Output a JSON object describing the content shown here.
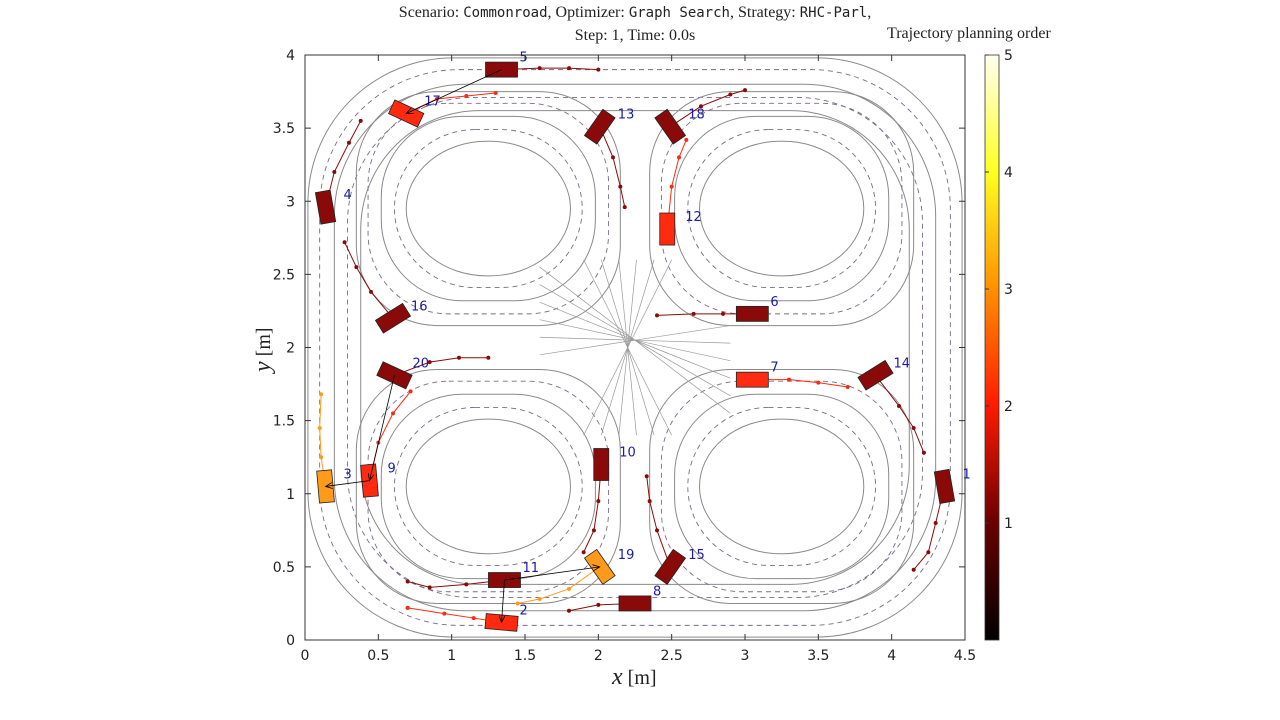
{
  "title": {
    "scenario_label": "Scenario: ",
    "scenario": "Commonroad",
    "optimizer_label": ", Optimizer: ",
    "optimizer": "Graph Search",
    "strategy_label": ", Strategy: ",
    "strategy": "RHC-Parl",
    "trail": ",",
    "line2": "Step: 1, Time: 0.0s"
  },
  "chart_data": {
    "type": "scatter",
    "xlabel_var": "x",
    "xlabel_unit": "[m]",
    "ylabel_var": "y",
    "ylabel_unit": "[m]",
    "xlim": [
      0,
      4.5
    ],
    "ylim": [
      0,
      4
    ],
    "xticks": [
      "0",
      "0.5",
      "1",
      "1.5",
      "2",
      "2.5",
      "3",
      "3.5",
      "4",
      "4.5"
    ],
    "yticks": [
      "0",
      "0.5",
      "1",
      "1.5",
      "2",
      "2.5",
      "3",
      "3.5",
      "4"
    ],
    "colorbar": {
      "title": "Trajectory planning order",
      "range": [
        0,
        5
      ],
      "ticks": [
        "1",
        "2",
        "3",
        "4",
        "5"
      ],
      "colormap": "hot"
    },
    "level_colors": {
      "1": "#8a0a0a",
      "2": "#ff2a10",
      "3": "#ff9a1a"
    },
    "vehicles": [
      {
        "id": "1",
        "x": 4.36,
        "y": 1.05,
        "angle": 100,
        "level": 1,
        "traj": [
          [
            4.3,
            0.8
          ],
          [
            4.25,
            0.6
          ],
          [
            4.15,
            0.48
          ]
        ]
      },
      {
        "id": "2",
        "x": 1.34,
        "y": 0.12,
        "angle": -5,
        "level": 2,
        "traj": [
          [
            1.15,
            0.15
          ],
          [
            0.95,
            0.18
          ],
          [
            0.7,
            0.22
          ],
          [
            0.7,
            0.22
          ]
        ]
      },
      {
        "id": "3",
        "x": 0.14,
        "y": 1.05,
        "angle": 95,
        "level": 3,
        "traj": [
          [
            0.11,
            1.25
          ],
          [
            0.1,
            1.45
          ],
          [
            0.11,
            1.68
          ]
        ]
      },
      {
        "id": "4",
        "x": 0.14,
        "y": 2.96,
        "angle": 100,
        "level": 1,
        "traj": [
          [
            0.2,
            3.2
          ],
          [
            0.3,
            3.4
          ],
          [
            0.38,
            3.55
          ]
        ]
      },
      {
        "id": "5",
        "x": 1.34,
        "y": 3.9,
        "angle": 0,
        "level": 1,
        "traj": [
          [
            1.6,
            3.91
          ],
          [
            1.8,
            3.91
          ],
          [
            2.0,
            3.9
          ]
        ]
      },
      {
        "id": "6",
        "x": 3.05,
        "y": 2.23,
        "angle": 0,
        "level": 1,
        "traj": [
          [
            2.85,
            2.23
          ],
          [
            2.65,
            2.23
          ],
          [
            2.4,
            2.22
          ]
        ]
      },
      {
        "id": "7",
        "x": 3.05,
        "y": 1.78,
        "angle": 0,
        "level": 2,
        "traj": [
          [
            3.3,
            1.78
          ],
          [
            3.5,
            1.76
          ],
          [
            3.7,
            1.73
          ]
        ]
      },
      {
        "id": "8",
        "x": 2.25,
        "y": 0.25,
        "angle": 0,
        "level": 1,
        "traj": [
          [
            2.0,
            0.24
          ],
          [
            1.8,
            0.2
          ]
        ]
      },
      {
        "id": "9",
        "x": 0.44,
        "y": 1.09,
        "angle": 95,
        "level": 2,
        "traj": [
          [
            0.5,
            1.35
          ],
          [
            0.6,
            1.55
          ],
          [
            0.72,
            1.7
          ]
        ]
      },
      {
        "id": "10",
        "x": 2.02,
        "y": 1.2,
        "angle": 90,
        "level": 1,
        "traj": [
          [
            2.0,
            0.95
          ],
          [
            1.97,
            0.75
          ],
          [
            1.9,
            0.6
          ]
        ]
      },
      {
        "id": "11",
        "x": 1.36,
        "y": 0.41,
        "angle": 0,
        "level": 1,
        "traj": [
          [
            1.1,
            0.38
          ],
          [
            0.85,
            0.36
          ],
          [
            0.7,
            0.4
          ]
        ]
      },
      {
        "id": "12",
        "x": 2.47,
        "y": 2.81,
        "angle": 90,
        "level": 2,
        "traj": [
          [
            2.5,
            3.1
          ],
          [
            2.55,
            3.3
          ],
          [
            2.6,
            3.42
          ]
        ]
      },
      {
        "id": "13",
        "x": 2.01,
        "y": 3.51,
        "angle": 55,
        "level": 1,
        "traj": [
          [
            2.1,
            3.3
          ],
          [
            2.15,
            3.1
          ],
          [
            2.18,
            2.96
          ]
        ]
      },
      {
        "id": "14",
        "x": 3.89,
        "y": 1.81,
        "angle": 32,
        "level": 1,
        "traj": [
          [
            4.05,
            1.6
          ],
          [
            4.15,
            1.45
          ],
          [
            4.22,
            1.28
          ]
        ]
      },
      {
        "id": "15",
        "x": 2.49,
        "y": 0.5,
        "angle": 55,
        "level": 1,
        "traj": [
          [
            2.4,
            0.75
          ],
          [
            2.35,
            0.95
          ],
          [
            2.33,
            1.12
          ]
        ]
      },
      {
        "id": "16",
        "x": 0.6,
        "y": 2.2,
        "angle": 32,
        "level": 1,
        "traj": [
          [
            0.45,
            2.38
          ],
          [
            0.35,
            2.55
          ],
          [
            0.27,
            2.72
          ]
        ]
      },
      {
        "id": "17",
        "x": 0.69,
        "y": 3.6,
        "angle": -25,
        "level": 2,
        "traj": [
          [
            0.9,
            3.7
          ],
          [
            1.1,
            3.72
          ],
          [
            1.3,
            3.74
          ]
        ]
      },
      {
        "id": "18",
        "x": 2.49,
        "y": 3.51,
        "angle": -55,
        "level": 1,
        "traj": [
          [
            2.7,
            3.65
          ],
          [
            2.9,
            3.73
          ],
          [
            3.0,
            3.76
          ]
        ]
      },
      {
        "id": "19",
        "x": 2.01,
        "y": 0.5,
        "angle": -55,
        "level": 3,
        "traj": [
          [
            1.8,
            0.35
          ],
          [
            1.6,
            0.28
          ],
          [
            1.45,
            0.25
          ]
        ]
      },
      {
        "id": "20",
        "x": 0.61,
        "y": 1.81,
        "angle": -25,
        "level": 1,
        "traj": [
          [
            0.85,
            1.9
          ],
          [
            1.05,
            1.93
          ],
          [
            1.25,
            1.93
          ]
        ]
      }
    ]
  }
}
